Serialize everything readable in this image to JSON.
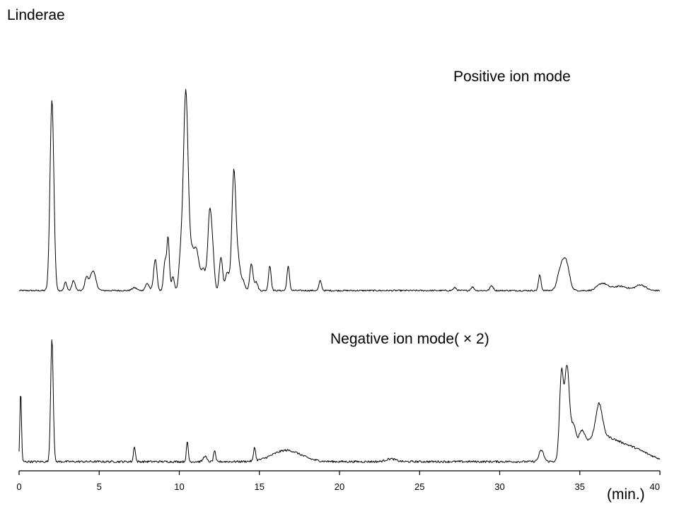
{
  "chart_data": {
    "type": "line",
    "title": "Linderae",
    "xlabel": "(min.)",
    "xlim": [
      0,
      40
    ],
    "xticks": [
      "0",
      "5",
      "10",
      "15",
      "20",
      "25",
      "30",
      "35",
      "40"
    ],
    "grid": false,
    "series": [
      {
        "name": "Positive ion mode",
        "baseline": 0,
        "peaks": [
          [
            2.05,
            270,
            0.12
          ],
          [
            2.9,
            12,
            0.08
          ],
          [
            3.4,
            14,
            0.1
          ],
          [
            4.2,
            18,
            0.1
          ],
          [
            4.6,
            28,
            0.18
          ],
          [
            7.2,
            4,
            0.15
          ],
          [
            8.0,
            10,
            0.12
          ],
          [
            8.5,
            45,
            0.1
          ],
          [
            9.1,
            40,
            0.08
          ],
          [
            9.3,
            75,
            0.08
          ],
          [
            9.6,
            20,
            0.08
          ],
          [
            10.1,
            50,
            0.12
          ],
          [
            10.4,
            270,
            0.14
          ],
          [
            10.75,
            55,
            0.2
          ],
          [
            11.1,
            45,
            0.15
          ],
          [
            11.5,
            30,
            0.15
          ],
          [
            11.9,
            110,
            0.12
          ],
          [
            12.1,
            40,
            0.1
          ],
          [
            12.6,
            48,
            0.1
          ],
          [
            13.0,
            25,
            0.12
          ],
          [
            13.4,
            160,
            0.12
          ],
          [
            13.65,
            45,
            0.15
          ],
          [
            14.0,
            12,
            0.1
          ],
          [
            14.5,
            38,
            0.1
          ],
          [
            14.8,
            12,
            0.1
          ],
          [
            15.65,
            35,
            0.08
          ],
          [
            16.8,
            34,
            0.08
          ],
          [
            18.8,
            14,
            0.08
          ],
          [
            27.2,
            4,
            0.1
          ],
          [
            28.3,
            5,
            0.1
          ],
          [
            29.5,
            7,
            0.1
          ],
          [
            32.5,
            22,
            0.08
          ],
          [
            33.8,
            28,
            0.2
          ],
          [
            34.15,
            38,
            0.2
          ],
          [
            36.4,
            10,
            0.3
          ],
          [
            37.5,
            6,
            0.5
          ],
          [
            38.8,
            8,
            0.3
          ]
        ]
      },
      {
        "name": "Negative ion mode( × 2)",
        "baseline": 0,
        "peaks": [
          [
            0.1,
            100,
            0.05
          ],
          [
            2.05,
            175,
            0.08
          ],
          [
            7.2,
            22,
            0.06
          ],
          [
            10.5,
            28,
            0.06
          ],
          [
            11.6,
            8,
            0.1
          ],
          [
            12.2,
            16,
            0.06
          ],
          [
            14.7,
            20,
            0.06
          ],
          [
            16.7,
            16,
            0.9
          ],
          [
            23.2,
            4,
            0.3
          ],
          [
            32.6,
            16,
            0.15
          ],
          [
            33.85,
            120,
            0.12
          ],
          [
            34.2,
            130,
            0.15
          ],
          [
            34.6,
            40,
            0.15
          ],
          [
            35.1,
            25,
            0.2
          ],
          [
            36.2,
            45,
            0.2
          ],
          [
            36.0,
            30,
            0.9
          ],
          [
            37.5,
            18,
            1.0
          ],
          [
            38.8,
            8,
            0.9
          ]
        ]
      }
    ]
  }
}
